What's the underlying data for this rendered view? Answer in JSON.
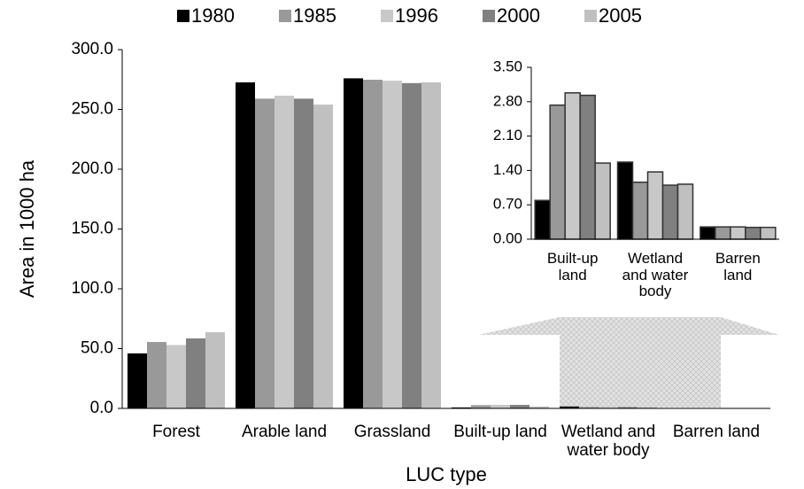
{
  "chart_data": [
    {
      "type": "bar",
      "x_label": "LUC type",
      "y_label": "Area in 1000 ha",
      "legend": "top",
      "categories": [
        "Forest",
        "Arable land",
        "Grassland",
        "Built-up land",
        "Wetland and water body",
        "Barren land"
      ],
      "series": [
        {
          "name": "1980",
          "color": "#000000",
          "values": [
            46,
            272.6,
            276,
            0.79,
            1.57,
            0.25
          ]
        },
        {
          "name": "1985",
          "color": "#999999",
          "values": [
            55.5,
            259,
            274.8,
            2.73,
            1.16,
            0.25
          ]
        },
        {
          "name": "1996",
          "color": "#c8c8c8",
          "values": [
            53,
            261.5,
            274,
            2.98,
            1.37,
            0.25
          ]
        },
        {
          "name": "2000",
          "color": "#808080",
          "values": [
            58.5,
            259,
            272,
            2.93,
            1.1,
            0.24
          ]
        },
        {
          "name": "2005",
          "color": "#c0c0c0",
          "values": [
            63.7,
            254,
            272.6,
            1.55,
            1.12,
            0.24
          ]
        }
      ],
      "ylim": [
        0,
        300
      ],
      "yticks": [
        {
          "value": 0,
          "label": "0.0"
        },
        {
          "value": 50,
          "label": "50.0"
        },
        {
          "value": 100,
          "label": "100.0"
        },
        {
          "value": 150,
          "label": "150.0"
        },
        {
          "value": 200,
          "label": "200.0"
        },
        {
          "value": 250,
          "label": "250.0"
        },
        {
          "value": 300,
          "label": "300.0"
        }
      ]
    },
    {
      "type": "bar",
      "categories": [
        "Built-up land",
        "Wetland and water body",
        "Barren land"
      ],
      "series": [
        {
          "color": "#000000",
          "values": [
            0.79,
            1.57,
            0.25
          ]
        },
        {
          "color": "#999999",
          "values": [
            2.73,
            1.16,
            0.25
          ]
        },
        {
          "color": "#c8c8c8",
          "values": [
            2.98,
            1.37,
            0.25
          ]
        },
        {
          "color": "#808080",
          "values": [
            2.93,
            1.1,
            0.24
          ]
        },
        {
          "color": "#c0c0c0",
          "values": [
            1.55,
            1.12,
            0.24
          ]
        }
      ],
      "ylim": [
        0,
        3.5
      ],
      "yticks": [
        {
          "value": 0,
          "label": "0.00"
        },
        {
          "value": 0.7,
          "label": "0.70"
        },
        {
          "value": 1.4,
          "label": "1.40"
        },
        {
          "value": 2.1,
          "label": "2.10"
        },
        {
          "value": 2.8,
          "label": "2.80"
        },
        {
          "value": 3.5,
          "label": "3.50"
        }
      ]
    }
  ]
}
